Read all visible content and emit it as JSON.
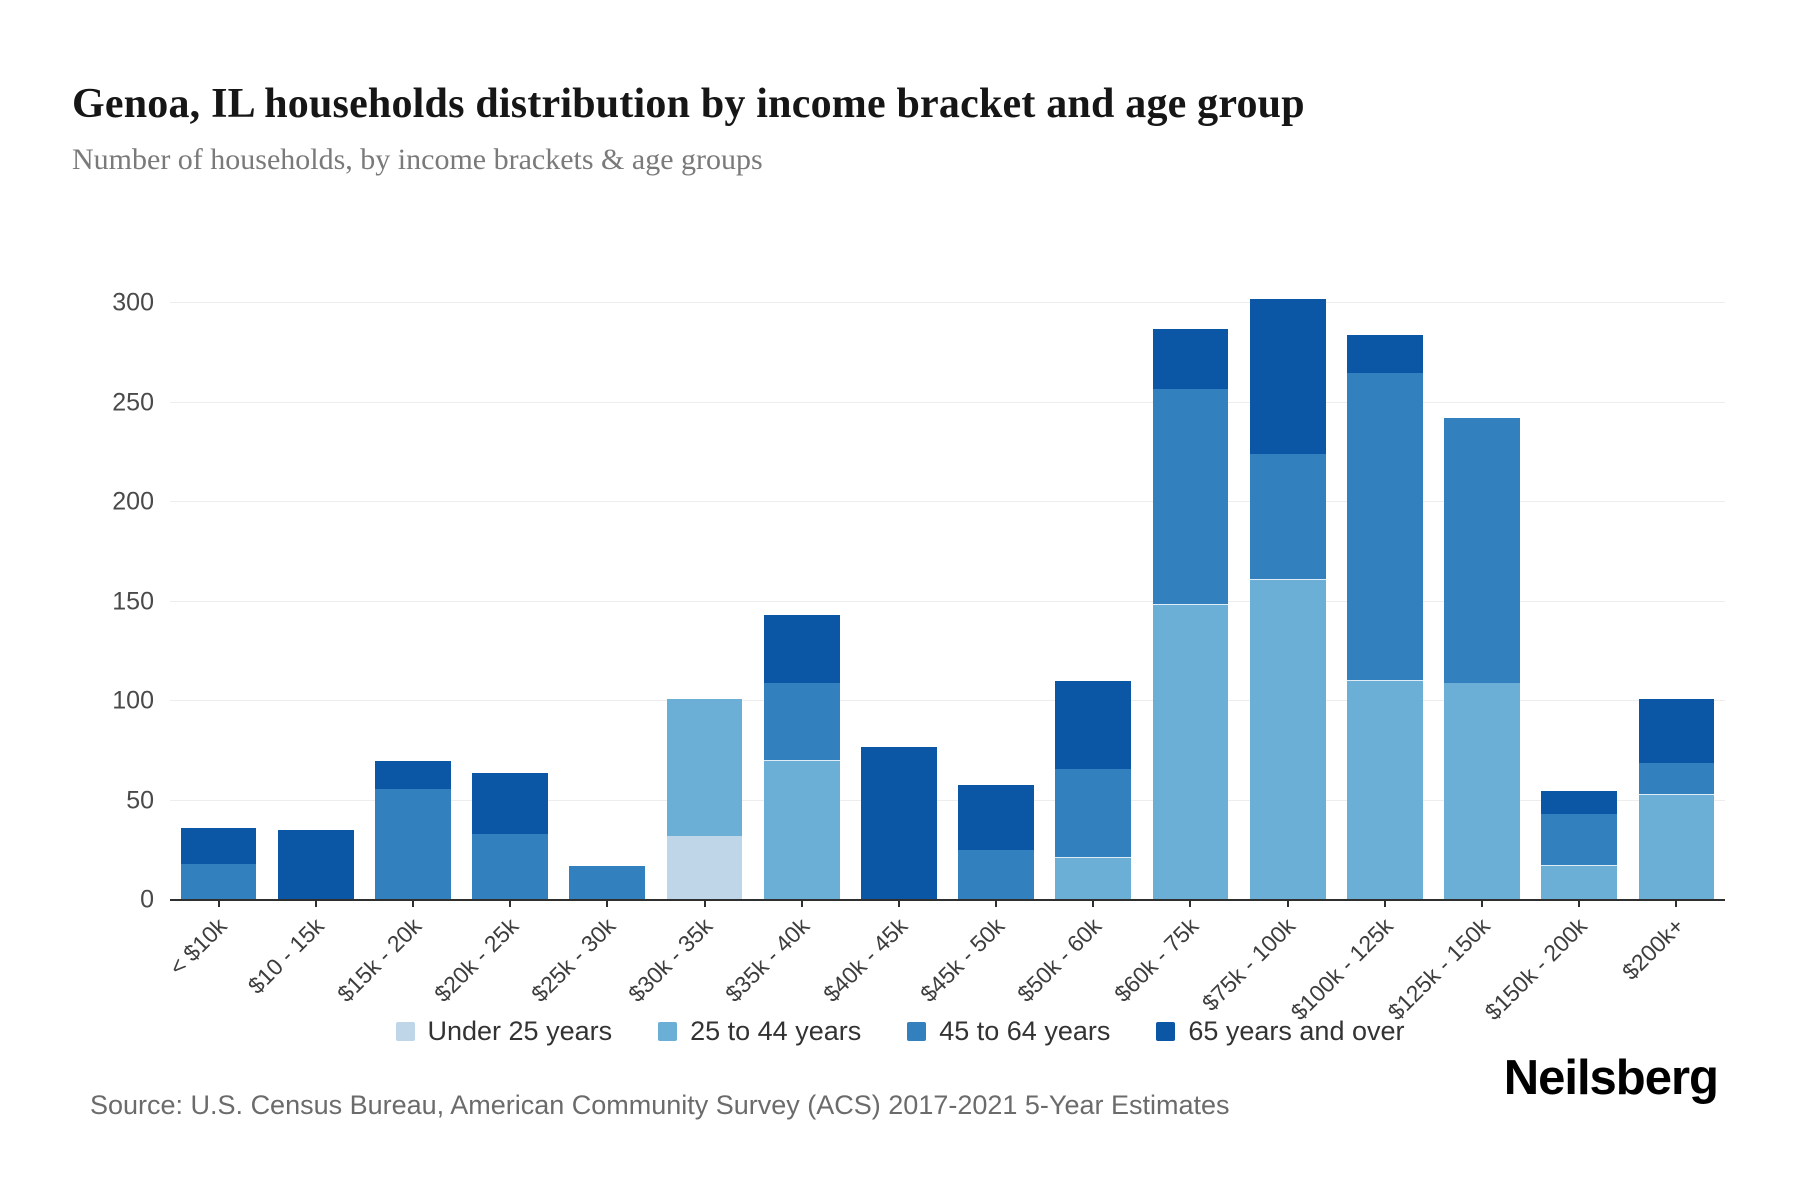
{
  "header": {
    "title": "Genoa, IL households distribution by income bracket and age group",
    "subtitle": "Number of households, by income brackets & age groups"
  },
  "footer": {
    "source": "Source: U.S. Census Bureau, American Community Survey (ACS) 2017-2021 5-Year Estimates",
    "brand": "Neilsberg"
  },
  "colors": {
    "grid": "#ededed",
    "axis": "#2f2f2f",
    "under_25": "#bfd6e8",
    "age_25_44": "#6baed6",
    "age_45_64": "#3380be",
    "age_65_over": "#0b57a6"
  },
  "chart_data": {
    "type": "bar",
    "stacked": true,
    "title": "Genoa, IL households distribution by income bracket and age group",
    "xlabel": "",
    "ylabel": "Number of households",
    "ylim": [
      0,
      300
    ],
    "y_ticks": [
      0,
      50,
      100,
      150,
      200,
      250,
      300
    ],
    "grid": "horizontal",
    "legend_position": "bottom",
    "categories": [
      "< $10k",
      "$10 - 15k",
      "$15k - 20k",
      "$20k - 25k",
      "$25k - 30k",
      "$30k - 35k",
      "$35k - 40k",
      "$40k - 45k",
      "$45k - 50k",
      "$50k - 60k",
      "$60k - 75k",
      "$75k - 100k",
      "$100k - 125k",
      "$125k - 150k",
      "$150k - 200k",
      "$200k+"
    ],
    "series": [
      {
        "name": "Under 25 years",
        "color": "#bfd6e8",
        "values": [
          0,
          0,
          0,
          0,
          0,
          32,
          0,
          0,
          0,
          0,
          0,
          0,
          0,
          0,
          0,
          0
        ]
      },
      {
        "name": "25 to 44 years",
        "color": "#6baed6",
        "values": [
          0,
          0,
          0,
          0,
          0,
          69,
          70,
          0,
          0,
          21,
          148,
          161,
          110,
          109,
          17,
          53
        ]
      },
      {
        "name": "45 to 64 years",
        "color": "#3380be",
        "values": [
          18,
          0,
          56,
          33,
          17,
          0,
          39,
          0,
          25,
          45,
          109,
          63,
          155,
          133,
          26,
          16
        ]
      },
      {
        "name": "65 years and over",
        "color": "#0b57a6",
        "values": [
          18,
          35,
          14,
          31,
          0,
          0,
          34,
          77,
          33,
          44,
          30,
          78,
          19,
          0,
          12,
          32
        ]
      }
    ],
    "totals": [
      36,
      35,
      70,
      64,
      17,
      101,
      143,
      77,
      58,
      110,
      287,
      302,
      284,
      242,
      55,
      101
    ]
  }
}
